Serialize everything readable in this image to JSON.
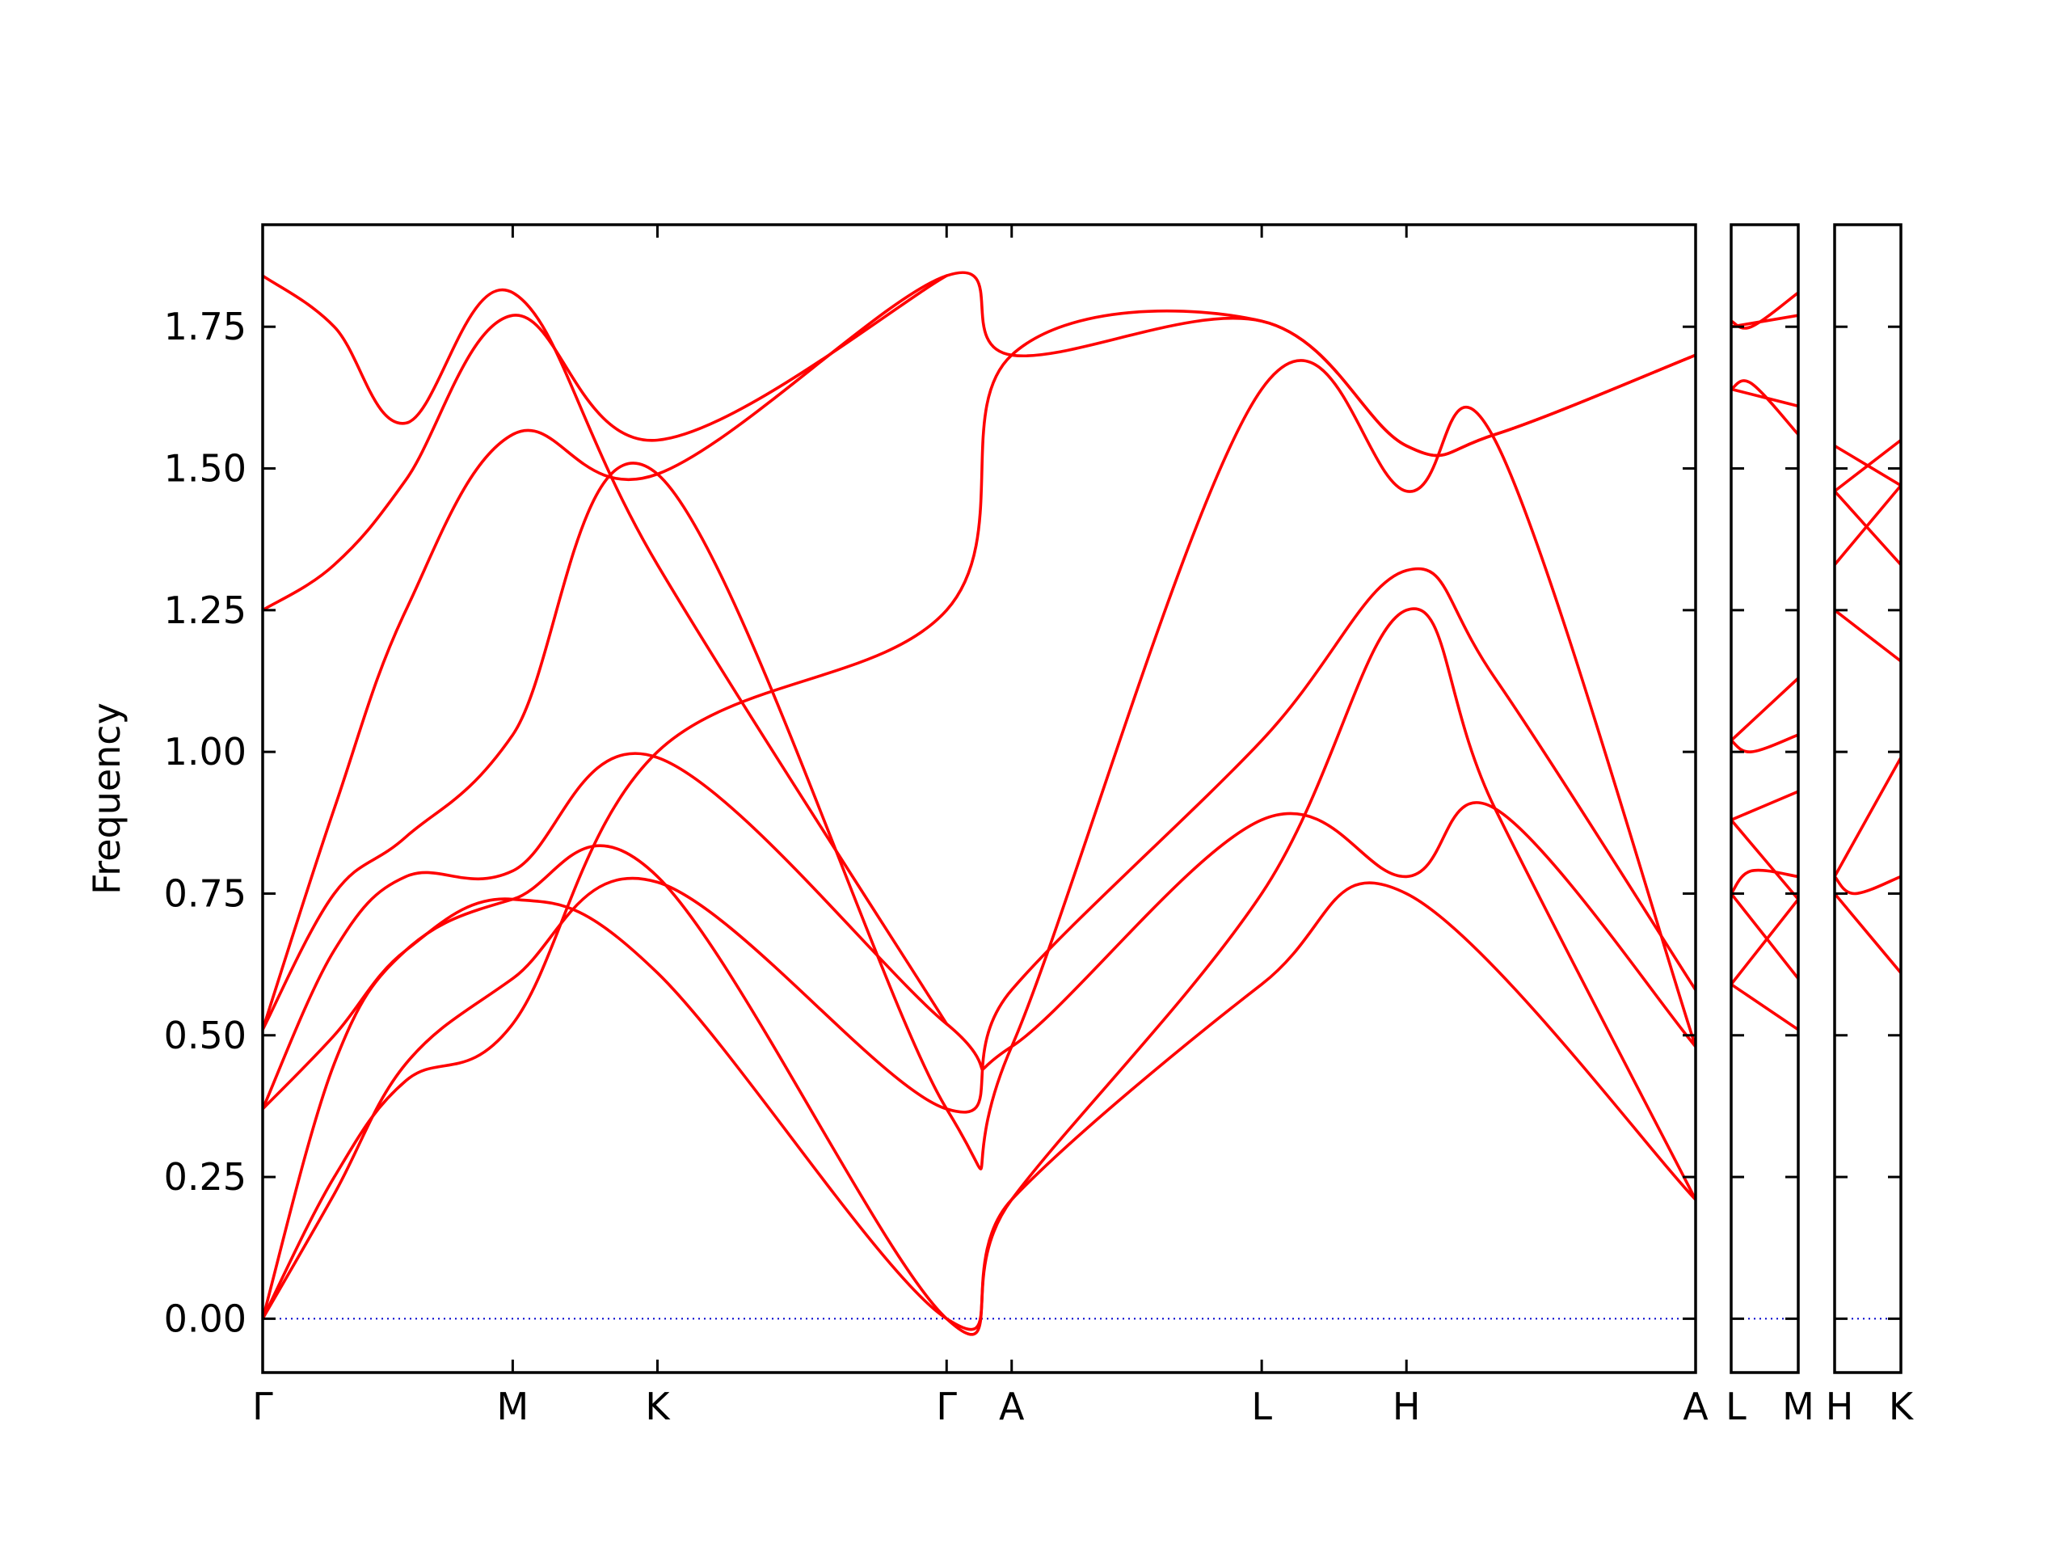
{
  "chart_data": {
    "type": "line",
    "ylabel": "Frequency",
    "xlabel": "",
    "ylim": [
      -0.095,
      1.93
    ],
    "yticks": [
      "0.00",
      "0.25",
      "0.50",
      "0.75",
      "1.00",
      "1.25",
      "1.50",
      "1.75"
    ],
    "ytick_values": [
      0.0,
      0.25,
      0.5,
      0.75,
      1.0,
      1.25,
      1.5,
      1.75
    ],
    "grid": false,
    "colors": {
      "bands": "#ff0000",
      "zero_line": "#0000cc",
      "frame": "#000000"
    },
    "panels": [
      {
        "kpoints": [
          "Γ",
          "M",
          "K",
          "Γ",
          "A",
          "L",
          "H",
          "A"
        ],
        "kpos": [
          0.0,
          0.1745,
          0.2755,
          0.4773,
          0.5227,
          0.6972,
          0.7982,
          1.0
        ],
        "series": [
          {
            "values": [
              [
                0,
                0
              ],
              [
                0.05,
                0.25
              ],
              [
                0.1,
                0.42
              ],
              [
                0.1745,
                0.52
              ],
              [
                0.2755,
                1.0
              ],
              [
                0.4773,
                1.25
              ],
              [
                0.5227,
                1.7
              ],
              [
                0.6972,
                1.76
              ],
              [
                0.7982,
                1.54
              ],
              [
                0.86,
                1.56
              ],
              [
                1.0,
                1.7
              ]
            ]
          },
          {
            "values": [
              [
                0,
                0
              ],
              [
                0.05,
                0.22
              ],
              [
                0.1,
                0.45
              ],
              [
                0.1745,
                0.6
              ],
              [
                0.2755,
                0.77
              ],
              [
                0.4773,
                0.37
              ],
              [
                0.5227,
                0.58
              ],
              [
                0.6972,
                1.02
              ],
              [
                0.7982,
                1.32
              ],
              [
                0.86,
                1.13
              ],
              [
                1.0,
                0.58
              ]
            ]
          },
          {
            "values": [
              [
                0,
                0
              ],
              [
                0.05,
                0.45
              ],
              [
                0.1,
                0.65
              ],
              [
                0.1745,
                0.74
              ],
              [
                0.2755,
                0.78
              ],
              [
                0.4773,
                0.0
              ],
              [
                0.5227,
                0.21
              ],
              [
                0.6972,
                0.59
              ],
              [
                0.7982,
                0.75
              ],
              [
                1.0,
                0.21
              ]
            ]
          },
          {
            "values": [
              [
                0,
                0.37
              ],
              [
                0.05,
                0.5
              ],
              [
                0.1,
                0.65
              ],
              [
                0.1745,
                0.74
              ],
              [
                0.2755,
                0.61
              ],
              [
                0.4773,
                0.0
              ],
              [
                0.5227,
                0.21
              ],
              [
                0.6972,
                0.75
              ],
              [
                0.7982,
                1.25
              ],
              [
                0.86,
                0.9
              ],
              [
                1.0,
                0.21
              ]
            ]
          },
          {
            "values": [
              [
                0,
                0.37
              ],
              [
                0.05,
                0.65
              ],
              [
                0.1,
                0.78
              ],
              [
                0.1745,
                0.79
              ],
              [
                0.2755,
                0.99
              ],
              [
                0.4773,
                0.52
              ],
              [
                0.5227,
                0.48
              ],
              [
                0.6972,
                0.88
              ],
              [
                0.7982,
                0.78
              ],
              [
                0.86,
                0.9
              ],
              [
                1.0,
                0.48
              ]
            ]
          },
          {
            "values": [
              [
                0,
                0.51
              ],
              [
                0.05,
                0.75
              ],
              [
                0.1,
                0.85
              ],
              [
                0.1745,
                1.03
              ],
              [
                0.2755,
                1.49
              ],
              [
                0.4773,
                0.37
              ],
              [
                0.5227,
                0.48
              ],
              [
                0.6972,
                1.64
              ],
              [
                0.7982,
                1.46
              ],
              [
                0.86,
                1.55
              ],
              [
                1.0,
                0.48
              ]
            ]
          },
          {
            "values": [
              [
                0,
                0.51
              ],
              [
                0.05,
                0.9
              ],
              [
                0.1,
                1.25
              ],
              [
                0.1745,
                1.56
              ],
              [
                0.2755,
                1.49
              ],
              [
                0.4773,
                1.84
              ],
              [
                0.5227,
                1.7
              ],
              [
                0.6972,
                1.76
              ],
              [
                0.7982,
                1.54
              ],
              [
                0.86,
                1.56
              ],
              [
                1.0,
                1.7
              ]
            ]
          },
          {
            "values": [
              [
                0,
                1.25
              ],
              [
                0.05,
                1.33
              ],
              [
                0.1,
                1.48
              ],
              [
                0.1745,
                1.77
              ],
              [
                0.2755,
                1.55
              ],
              [
                0.4773,
                1.84
              ]
            ]
          },
          {
            "values": [
              [
                0,
                1.84
              ],
              [
                0.05,
                1.75
              ],
              [
                0.1,
                1.58
              ],
              [
                0.1745,
                1.81
              ],
              [
                0.2755,
                1.33
              ],
              [
                0.4773,
                0.52
              ]
            ]
          }
        ]
      },
      {
        "kpoints": [
          "L",
          "M"
        ],
        "kpos": [
          0.0,
          1.0
        ],
        "series": [
          {
            "values": [
              [
                0,
                1.76
              ],
              [
                0.3,
                1.75
              ],
              [
                1,
                1.81
              ]
            ]
          },
          {
            "values": [
              [
                0,
                1.75
              ],
              [
                1,
                1.77
              ]
            ]
          },
          {
            "values": [
              [
                0,
                1.64
              ],
              [
                0.3,
                1.65
              ],
              [
                1,
                1.56
              ]
            ]
          },
          {
            "values": [
              [
                0,
                1.64
              ],
              [
                1,
                1.61
              ]
            ]
          },
          {
            "values": [
              [
                0,
                1.02
              ],
              [
                1,
                1.13
              ]
            ]
          },
          {
            "values": [
              [
                0,
                1.02
              ],
              [
                0.3,
                1.0
              ],
              [
                1,
                1.03
              ]
            ]
          },
          {
            "values": [
              [
                0,
                0.88
              ],
              [
                1,
                0.93
              ]
            ]
          },
          {
            "values": [
              [
                0,
                0.88
              ],
              [
                1,
                0.74
              ]
            ]
          },
          {
            "values": [
              [
                0,
                0.75
              ],
              [
                0.3,
                0.79
              ],
              [
                1,
                0.78
              ]
            ]
          },
          {
            "values": [
              [
                0,
                0.75
              ],
              [
                1,
                0.6
              ]
            ]
          },
          {
            "values": [
              [
                0,
                0.59
              ],
              [
                1,
                0.74
              ]
            ]
          },
          {
            "values": [
              [
                0,
                0.59
              ],
              [
                1,
                0.51
              ]
            ]
          }
        ]
      },
      {
        "kpoints": [
          "H",
          "K"
        ],
        "kpos": [
          0.0,
          1.0
        ],
        "series": [
          {
            "values": [
              [
                0,
                1.54
              ],
              [
                1,
                1.47
              ]
            ]
          },
          {
            "values": [
              [
                0,
                1.46
              ],
              [
                1,
                1.55
              ]
            ]
          },
          {
            "values": [
              [
                0,
                1.46
              ],
              [
                1,
                1.33
              ]
            ]
          },
          {
            "values": [
              [
                0,
                1.33
              ],
              [
                1,
                1.47
              ]
            ]
          },
          {
            "values": [
              [
                0,
                1.25
              ],
              [
                1,
                1.16
              ]
            ]
          },
          {
            "values": [
              [
                0,
                0.78
              ],
              [
                1,
                0.99
              ]
            ]
          },
          {
            "values": [
              [
                0,
                0.78
              ],
              [
                0.3,
                0.75
              ],
              [
                1,
                0.78
              ]
            ]
          },
          {
            "values": [
              [
                0,
                0.75
              ],
              [
                1,
                0.61
              ]
            ]
          }
        ]
      }
    ]
  }
}
